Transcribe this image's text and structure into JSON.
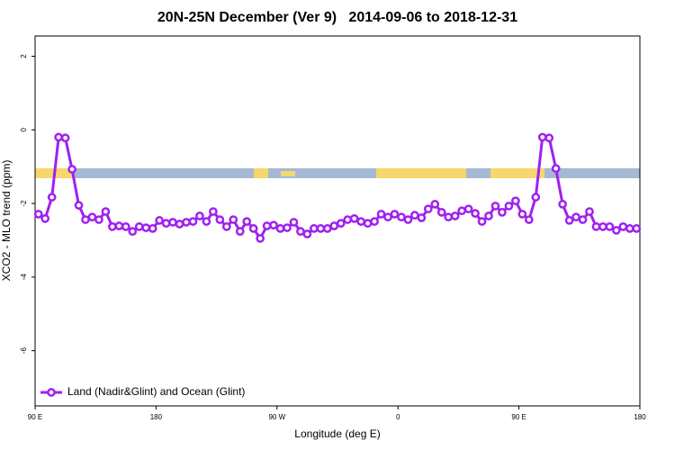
{
  "chart_data": {
    "type": "line",
    "title": "20N-25N December (Ver 9)   2014-09-06 to 2018-12-31",
    "x_label": "Longitude (deg E)",
    "y_label": "XCO2 - MLO trend (ppm)",
    "xlim": [
      90,
      540
    ],
    "ylim": [
      -7.5,
      2.55
    ],
    "xticks": [
      {
        "value": 90,
        "label": "90 E"
      },
      180,
      {
        "value": 270,
        "label": "90 W"
      },
      {
        "value": 360,
        "label": "0"
      },
      {
        "value": 450,
        "label": "90 E"
      },
      {
        "value": 540,
        "label": "180"
      }
    ],
    "yticks": [
      2,
      0,
      -2,
      -4,
      -6
    ],
    "legend": "bottom-left",
    "x": [
      92.5,
      97.5,
      102.5,
      107.5,
      112.5,
      117.5,
      122.5,
      127.5,
      132.5,
      137.5,
      142.5,
      147.5,
      152.5,
      157.5,
      162.5,
      167.5,
      172.5,
      177.5,
      182.5,
      187.5,
      192.5,
      197.5,
      202.5,
      207.5,
      212.5,
      217.5,
      222.5,
      227.5,
      232.5,
      237.5,
      242.5,
      247.5,
      252.5,
      257.5,
      262.5,
      267.5,
      272.5,
      277.5,
      282.5,
      287.5,
      292.5,
      297.5,
      302.5,
      307.5,
      312.5,
      317.5,
      322.5,
      327.5,
      332.5,
      337.5,
      342.5,
      347.5,
      352.5,
      357.5,
      362.5,
      367.5,
      372.5,
      377.5,
      382.5,
      387.5,
      392.5,
      397.5,
      402.5,
      407.5,
      412.5,
      417.5,
      422.5,
      427.5,
      432.5,
      437.5,
      442.5,
      447.5,
      452.5,
      457.5,
      462.5,
      467.5,
      472.5,
      477.5,
      482.5,
      487.5,
      492.5,
      497.5,
      502.5,
      507.5,
      512.5,
      517.5,
      522.5,
      527.5,
      532.5,
      537.5
    ],
    "series": [
      {
        "name": "Land (Nadir&Glint) and Ocean (Glint)",
        "color": "#a020f0",
        "values": [
          -2.29,
          -2.41,
          -1.83,
          -0.2,
          -0.22,
          -1.07,
          -2.05,
          -2.44,
          -2.37,
          -2.44,
          -2.22,
          -2.63,
          -2.61,
          -2.63,
          -2.76,
          -2.63,
          -2.66,
          -2.68,
          -2.46,
          -2.54,
          -2.51,
          -2.56,
          -2.51,
          -2.49,
          -2.34,
          -2.49,
          -2.22,
          -2.44,
          -2.63,
          -2.44,
          -2.76,
          -2.49,
          -2.68,
          -2.95,
          -2.61,
          -2.59,
          -2.68,
          -2.66,
          -2.51,
          -2.76,
          -2.83,
          -2.68,
          -2.68,
          -2.68,
          -2.61,
          -2.54,
          -2.44,
          -2.41,
          -2.49,
          -2.54,
          -2.49,
          -2.29,
          -2.37,
          -2.29,
          -2.37,
          -2.44,
          -2.32,
          -2.39,
          -2.15,
          -2.02,
          -2.24,
          -2.37,
          -2.34,
          -2.2,
          -2.15,
          -2.27,
          -2.49,
          -2.34,
          -2.07,
          -2.24,
          -2.07,
          -1.93,
          -2.29,
          -2.44,
          -1.83,
          -0.2,
          -0.22,
          -1.05,
          -2.02,
          -2.46,
          -2.37,
          -2.44,
          -2.22,
          -2.63,
          -2.63,
          -2.63,
          -2.73,
          -2.63,
          -2.68,
          -2.68
        ]
      }
    ]
  }
}
